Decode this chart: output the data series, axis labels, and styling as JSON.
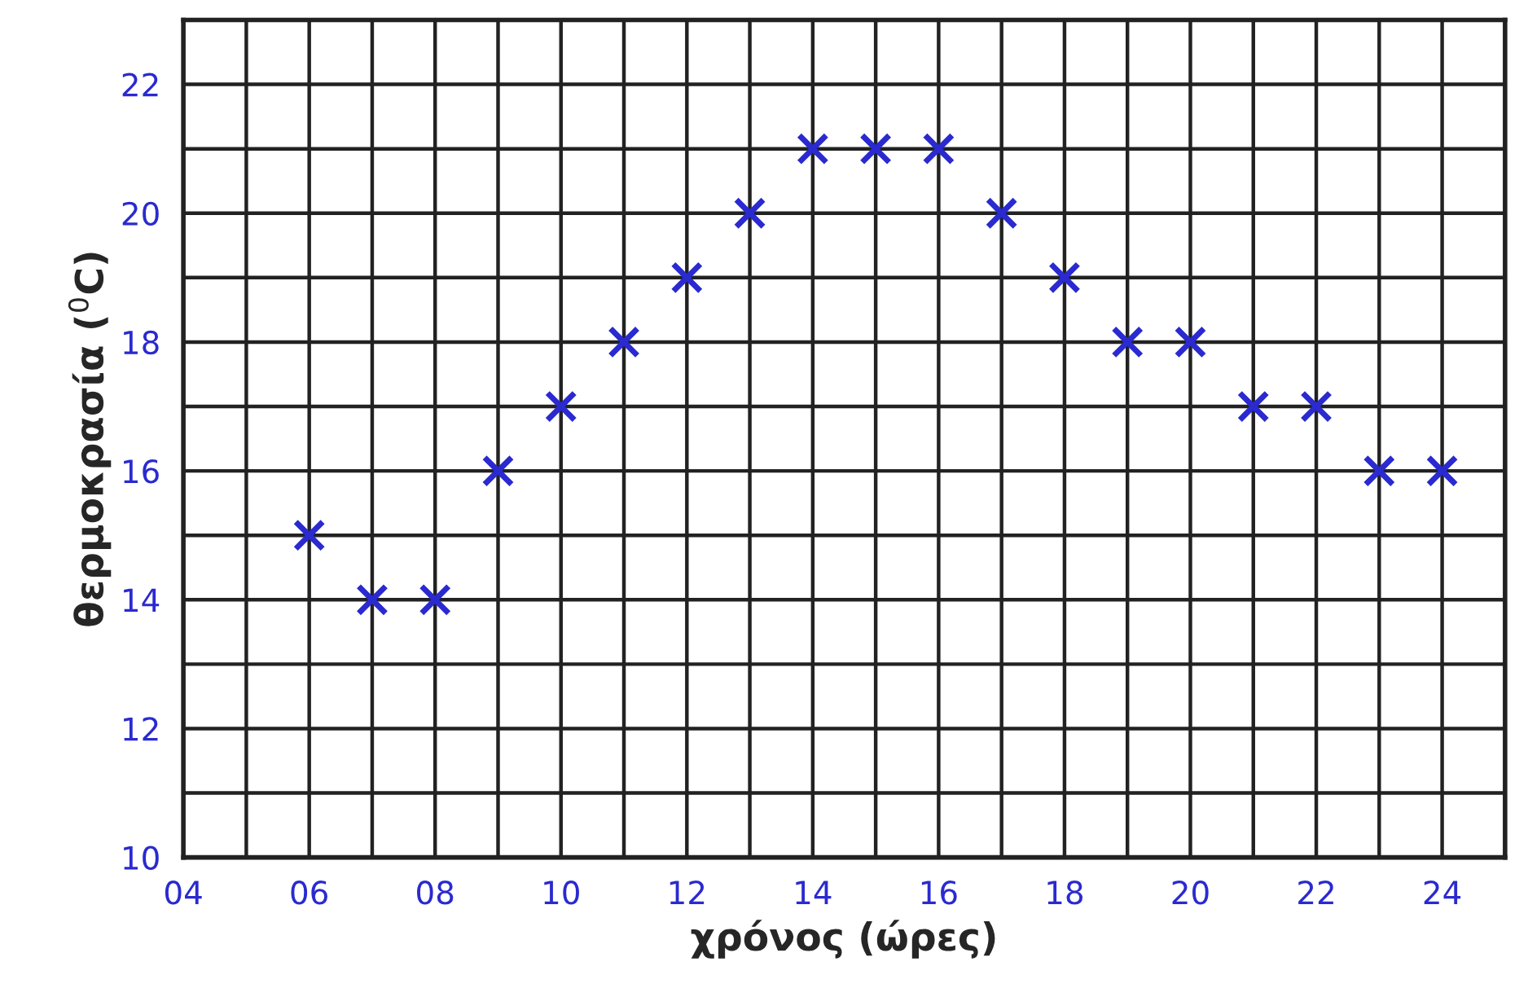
{
  "chart_data": {
    "type": "scatter",
    "xlabel": "χρόνος (ώρες)",
    "ylabel": "θερμοκρασία ($^{0}$C)",
    "x": [
      6,
      7,
      8,
      9,
      10,
      11,
      12,
      13,
      14,
      15,
      16,
      17,
      18,
      19,
      20,
      21,
      22,
      23,
      24
    ],
    "series": [
      {
        "color": "#2a2ad0",
        "values": [
          15,
          14,
          14,
          16,
          17,
          18,
          19,
          20,
          21,
          21,
          21,
          20,
          19,
          18,
          18,
          17,
          17,
          16,
          16
        ]
      }
    ],
    "marker": "cross",
    "grid": true,
    "xlim": [
      4,
      25
    ],
    "ylim": [
      10,
      23
    ],
    "xticks": [
      {
        "value": 4,
        "label": "04"
      },
      {
        "value": 5,
        "label": null
      },
      {
        "value": 6,
        "label": "06"
      },
      {
        "value": 7,
        "label": null
      },
      {
        "value": 8,
        "label": "08"
      },
      {
        "value": 9,
        "label": null
      },
      10,
      {
        "value": 11,
        "label": null
      },
      12,
      {
        "value": 13,
        "label": null
      },
      14,
      {
        "value": 15,
        "label": null
      },
      16,
      {
        "value": 17,
        "label": null
      },
      18,
      {
        "value": 19,
        "label": null
      },
      20,
      {
        "value": 21,
        "label": null
      },
      22,
      {
        "value": 23,
        "label": null
      },
      24,
      {
        "value": 25,
        "label": null
      }
    ],
    "yticks": [
      10,
      {
        "value": 11,
        "label": null
      },
      12,
      {
        "value": 13,
        "label": null
      },
      14,
      {
        "value": 15,
        "label": null
      },
      16,
      {
        "value": 17,
        "label": null
      },
      18,
      {
        "value": 19,
        "label": null
      },
      20,
      {
        "value": 21,
        "label": null
      },
      22,
      {
        "value": 23,
        "label": null
      }
    ]
  }
}
